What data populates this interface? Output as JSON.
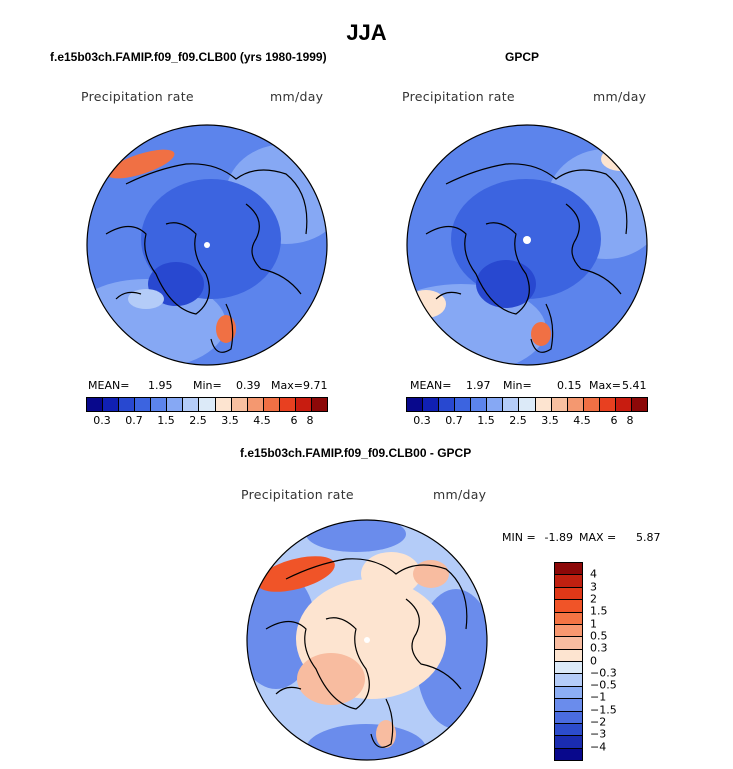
{
  "season_title": "JJA",
  "panels": [
    {
      "title": "f.e15b03ch.FAMIP.f09_f09.CLB00 (yrs 1980-1999)",
      "variable": "Precipitation rate",
      "units": "mm/day",
      "mean_label": "MEAN=",
      "mean": "1.95",
      "min_label": "Min=",
      "min": "0.39",
      "max_label": "Max=",
      "max": "9.71"
    },
    {
      "title": "GPCP",
      "variable": "Precipitation rate",
      "units": "mm/day",
      "mean_label": "MEAN=",
      "mean": "1.97",
      "min_label": "Min=",
      "min": "0.15",
      "max_label": "Max=",
      "max": "5.41"
    }
  ],
  "abs_colorbar": {
    "colors": [
      "#08088c",
      "#1020b4",
      "#2848d0",
      "#3c64e0",
      "#5c84ec",
      "#86a8f4",
      "#b4ccf8",
      "#dceaf8",
      "#fde4d0",
      "#f8c0a0",
      "#f49870",
      "#f07044",
      "#e84020",
      "#c81c10",
      "#8c0808"
    ],
    "tick_labels": [
      "0.3",
      "0.7",
      "1.5",
      "2.5",
      "3.5",
      "4.5",
      "6",
      "8"
    ]
  },
  "diff_panel": {
    "title": "f.e15b03ch.FAMIP.f09_f09.CLB00 - GPCP",
    "variable": "Precipitation rate",
    "units": "mm/day",
    "min_label": "MIN =",
    "min": "-1.89",
    "max_label": "MAX =",
    "max": "5.87"
  },
  "diff_colorbar": {
    "colors": [
      "#8c0808",
      "#c02010",
      "#e03818",
      "#f05428",
      "#f47444",
      "#f89870",
      "#f8bca0",
      "#fde4d0",
      "#dceaf8",
      "#b4ccf8",
      "#8caef4",
      "#6a8cec",
      "#4a6ce0",
      "#2c4ccc",
      "#1a2cb0",
      "#08088c"
    ],
    "tick_labels": [
      "4",
      "3",
      "2",
      "1.5",
      "1",
      "0.5",
      "0.3",
      "0",
      "−0.3",
      "−0.5",
      "−1",
      "−1.5",
      "−2",
      "−3",
      "−4"
    ]
  },
  "map_palette": {
    "ocean_abs": "#5c84ec",
    "ocean_abs_light": "#86a8f4",
    "arctic_abs": "#3c64e0",
    "greenland_abs": "#2848d0",
    "wet_abs": "#f07044",
    "dry_abs": "#b4ccf8",
    "diff_neutral": "#fde4d0",
    "diff_blue": "#6a8cec",
    "diff_lightblue": "#b4ccf8",
    "diff_red": "#f05428",
    "diff_orange": "#f8bca0",
    "coast": "#000000",
    "pole_marker": "#ffffff"
  }
}
